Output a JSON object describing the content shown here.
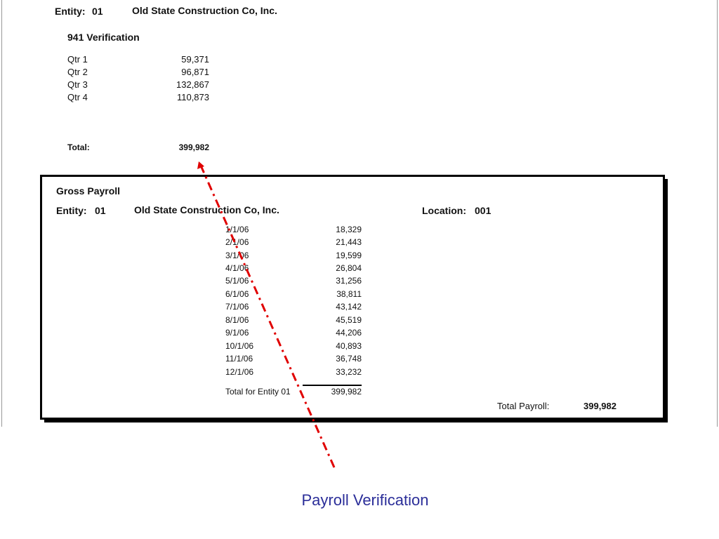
{
  "verification": {
    "entity_label": "Entity:",
    "entity_code": "01",
    "company": "Old State Construction Co, Inc.",
    "section_title": "941 Verification",
    "quarters": [
      {
        "label": "Qtr 1",
        "value": "59,371"
      },
      {
        "label": "Qtr 2",
        "value": "96,871"
      },
      {
        "label": "Qtr 3",
        "value": "132,867"
      },
      {
        "label": "Qtr 4",
        "value": "110,873"
      }
    ],
    "total_label": "Total:",
    "total_value": "399,982"
  },
  "gross_payroll": {
    "title": "Gross Payroll",
    "entity_label": "Entity:",
    "entity_code": "01",
    "company": "Old State Construction Co, Inc.",
    "location_label": "Location:",
    "location_code": "001",
    "rows": [
      {
        "date": "1/1/06",
        "value": "18,329"
      },
      {
        "date": "2/1/06",
        "value": "21,443"
      },
      {
        "date": "3/1/06",
        "value": "19,599"
      },
      {
        "date": "4/1/06",
        "value": "26,804"
      },
      {
        "date": "5/1/06",
        "value": "31,256"
      },
      {
        "date": "6/1/06",
        "value": "38,811"
      },
      {
        "date": "7/1/06",
        "value": "43,142"
      },
      {
        "date": "8/1/06",
        "value": "45,519"
      },
      {
        "date": "9/1/06",
        "value": "44,206"
      },
      {
        "date": "10/1/06",
        "value": "40,893"
      },
      {
        "date": "11/1/06",
        "value": "36,748"
      },
      {
        "date": "12/1/06",
        "value": "33,232"
      }
    ],
    "entity_total_label": "Total for Entity 01",
    "entity_total_value": "399,982",
    "payroll_total_label": "Total Payroll:",
    "payroll_total_value": "399,982"
  },
  "caption": "Payroll Verification",
  "colors": {
    "caption": "#2b2e99",
    "arrow": "#e00000"
  }
}
